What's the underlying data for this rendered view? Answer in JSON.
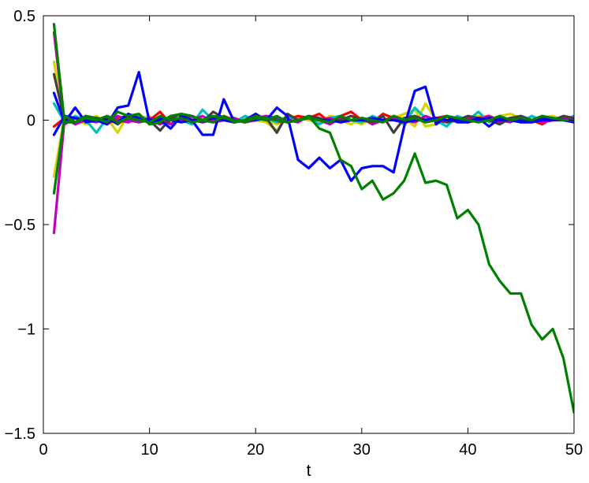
{
  "chart_data": {
    "type": "line",
    "title": "",
    "xlabel": "t",
    "ylabel": "",
    "xlim": [
      0,
      50
    ],
    "ylim": [
      -1.5,
      0.5
    ],
    "x_ticks": [
      0,
      10,
      20,
      30,
      40,
      50
    ],
    "y_ticks": [
      -1.5,
      -1,
      -0.5,
      0,
      0.5
    ],
    "x_tick_labels": [
      "0",
      "10",
      "20",
      "30",
      "40",
      "50"
    ],
    "y_tick_labels": [
      "−1.5",
      "−1",
      "−0.5",
      "0",
      "0.5"
    ],
    "grid": false,
    "legend": "none",
    "series": [
      {
        "color": "#d4d400",
        "x_start": 1,
        "values": [
          0.28,
          -0.02,
          0.01,
          -0.01,
          0.02,
          -0.01,
          0.01,
          0.0,
          0.02,
          0.01,
          -0.01,
          0.02,
          0.0,
          -0.01,
          0.01,
          0.02,
          0.0,
          -0.01,
          0.01,
          0.0,
          -0.01,
          -0.05,
          0.02,
          0.01,
          0.0,
          -0.01,
          0.02,
          0.0,
          -0.02,
          0.01,
          0.0,
          -0.01,
          0.01,
          0.03,
          0.05,
          -0.03,
          -0.02,
          0.0,
          -0.01,
          0.01,
          0.02,
          0.0,
          0.02,
          0.03,
          0.01,
          0.0,
          0.02,
          0.0,
          0.01,
          0.01
        ]
      },
      {
        "color": "#d4d400",
        "x_start": 1,
        "values": [
          -0.27,
          0.02,
          0.01,
          -0.02,
          0.0,
          0.01,
          -0.06,
          0.03,
          -0.01,
          0.02,
          -0.02,
          0.0,
          0.02,
          0.01,
          -0.01,
          0.02,
          0.0,
          0.01,
          -0.01,
          0.02,
          0.0,
          -0.02,
          0.01,
          0.02,
          0.0,
          -0.01,
          0.02,
          0.01,
          0.0,
          -0.02,
          0.01,
          0.0,
          0.02,
          0.01,
          -0.03,
          0.08,
          0.0,
          0.01,
          0.0,
          -0.01,
          0.02,
          0.01,
          0.0,
          0.01,
          0.02,
          0.0,
          0.01,
          0.02,
          0.0,
          0.01
        ]
      },
      {
        "color": "#ff0000",
        "x_start": 1,
        "values": [
          -0.03,
          0.01,
          -0.01,
          0.02,
          0.0,
          -0.02,
          0.01,
          0.02,
          -0.01,
          0.0,
          0.04,
          -0.02,
          0.01,
          0.02,
          0.0,
          -0.01,
          0.02,
          0.0,
          -0.01,
          0.01,
          0.02,
          -0.01,
          0.0,
          0.02,
          0.01,
          0.03,
          -0.01,
          0.02,
          0.04,
          0.0,
          -0.01,
          0.03,
          0.01,
          -0.02,
          0.02,
          0.0,
          0.01,
          0.02,
          0.0,
          -0.01,
          0.01,
          0.02,
          0.0,
          0.01,
          -0.01,
          0.0,
          -0.02,
          0.01,
          0.0,
          0.01
        ]
      },
      {
        "color": "#00bfbf",
        "x_start": 1,
        "values": [
          0.08,
          -0.01,
          0.02,
          0.0,
          -0.06,
          0.01,
          0.02,
          -0.01,
          0.02,
          0.0,
          -0.01,
          0.02,
          0.0,
          -0.02,
          0.05,
          0.0,
          0.01,
          -0.01,
          0.02,
          0.0,
          0.01,
          -0.01,
          0.02,
          0.0,
          0.01,
          -0.02,
          0.01,
          0.02,
          0.0,
          -0.01,
          0.02,
          0.0,
          0.01,
          -0.02,
          0.06,
          0.01,
          0.0,
          -0.03,
          0.02,
          0.0,
          0.04,
          -0.01,
          0.01,
          0.0,
          -0.01,
          0.02,
          0.0,
          0.01,
          0.0,
          0.02
        ]
      },
      {
        "color": "#bf00bf",
        "x_start": 1,
        "values": [
          -0.54,
          0.01,
          -0.02,
          0.0,
          0.01,
          -0.01,
          0.02,
          0.0,
          -0.01,
          0.01,
          0.0,
          -0.02,
          0.01,
          0.0,
          0.02,
          -0.01,
          0.0,
          0.01,
          -0.01,
          0.0,
          0.02,
          0.01,
          0.0,
          -0.01,
          0.02,
          0.0,
          0.01,
          -0.01,
          0.0,
          0.01,
          -0.02,
          0.0,
          0.01,
          0.0,
          -0.01,
          0.02,
          0.0,
          -0.01,
          0.0,
          0.01,
          0.0,
          0.02,
          -0.01,
          0.0,
          0.01,
          0.0,
          -0.01,
          0.0,
          0.01,
          0.0
        ]
      },
      {
        "color": "#bf00bf",
        "x_start": 1,
        "values": [
          0.42,
          -0.02,
          0.01,
          0.0,
          -0.01,
          0.02,
          0.0,
          -0.01,
          0.01,
          0.0,
          -0.02,
          0.01,
          0.0,
          0.02,
          -0.01,
          0.0,
          0.01,
          0.0,
          -0.01,
          0.02,
          0.0,
          0.01,
          -0.01,
          0.0,
          0.01,
          0.0,
          -0.02,
          0.01,
          0.0,
          0.01,
          0.0,
          -0.01,
          0.02,
          0.0,
          0.01,
          -0.01,
          0.0,
          0.02,
          0.0,
          -0.01,
          0.0,
          0.01,
          0.0,
          -0.01,
          0.02,
          0.0,
          0.0,
          0.01,
          0.0,
          0.0
        ]
      },
      {
        "color": "#404040",
        "x_start": 1,
        "values": [
          0.22,
          0.0,
          -0.01,
          0.02,
          0.0,
          0.01,
          -0.02,
          0.02,
          0.01,
          0.0,
          -0.05,
          0.01,
          0.03,
          0.0,
          -0.01,
          0.04,
          0.01,
          -0.01,
          0.0,
          0.02,
          0.01,
          -0.06,
          0.03,
          0.0,
          0.02,
          0.01,
          -0.01,
          0.0,
          0.02,
          0.0,
          -0.01,
          0.02,
          -0.06,
          0.01,
          0.02,
          0.0,
          0.01,
          -0.01,
          0.0,
          0.02,
          0.01,
          0.0,
          -0.02,
          0.01,
          0.02,
          0.0,
          0.01,
          0.0,
          0.02,
          0.01
        ]
      },
      {
        "color": "#0000ff",
        "x_start": 1,
        "values": [
          0.13,
          -0.01,
          0.06,
          -0.01,
          0.0,
          -0.02,
          0.06,
          0.07,
          0.23,
          -0.01,
          0.0,
          -0.04,
          0.02,
          0.0,
          -0.07,
          -0.07,
          0.1,
          -0.01,
          0.0,
          0.03,
          0.0,
          0.06,
          0.02,
          -0.19,
          -0.23,
          -0.18,
          -0.23,
          -0.19,
          -0.29,
          -0.23,
          -0.22,
          -0.22,
          -0.25,
          -0.03,
          0.14,
          0.16,
          -0.02,
          0.02,
          -0.01,
          -0.01,
          0.01,
          -0.03,
          0.01,
          0.0,
          -0.01,
          -0.01,
          0.01,
          0.01,
          0.0,
          -0.01
        ]
      },
      {
        "color": "#0000ff",
        "x_start": 1,
        "values": [
          -0.07,
          0.02,
          0.01,
          0.0,
          0.01,
          0.0,
          -0.01,
          0.03,
          0.01,
          0.0,
          0.01,
          0.0,
          -0.01,
          0.0,
          0.0,
          0.01,
          0.0,
          -0.01,
          0.0,
          0.0,
          0.01,
          0.0,
          -0.01,
          0.0,
          0.01,
          0.0,
          0.0,
          -0.01,
          0.0,
          0.0,
          0.01,
          0.0,
          0.0,
          -0.01,
          0.0,
          0.0,
          0.01,
          0.0,
          0.0,
          0.0,
          0.0,
          0.01,
          0.0,
          0.0,
          0.0,
          -0.01,
          0.0,
          0.0,
          0.0,
          0.0
        ]
      },
      {
        "color": "#008000",
        "x_start": 1,
        "values": [
          -0.35,
          0.02,
          -0.01,
          0.01,
          0.0,
          0.02,
          -0.01,
          0.01,
          0.0,
          -0.01,
          0.02,
          0.0,
          0.01,
          -0.01,
          0.0,
          0.02,
          0.01,
          0.0,
          -0.01,
          0.01,
          0.0,
          0.02,
          -0.01,
          0.0,
          0.01,
          0.0,
          -0.01,
          0.02,
          0.0,
          0.01,
          0.0,
          -0.01,
          0.02,
          0.0,
          0.01,
          -0.01,
          0.0,
          0.02,
          0.01,
          0.0,
          -0.01,
          0.0,
          0.02,
          0.0,
          0.01,
          0.0,
          0.02,
          0.01,
          0.0,
          0.0
        ]
      },
      {
        "color": "#008000",
        "x_start": 1,
        "values": [
          0.46,
          -0.01,
          -0.01,
          0.02,
          0.01,
          -0.01,
          0.04,
          0.02,
          0.03,
          -0.02,
          -0.01,
          0.02,
          0.03,
          0.02,
          0.0,
          -0.01,
          0.02,
          -0.01,
          0.0,
          0.02,
          0.01,
          0.0,
          -0.01,
          0.0,
          0.02,
          -0.04,
          -0.06,
          -0.19,
          -0.22,
          -0.33,
          -0.29,
          -0.38,
          -0.35,
          -0.29,
          -0.16,
          -0.3,
          -0.29,
          -0.31,
          -0.47,
          -0.43,
          -0.5,
          -0.69,
          -0.77,
          -0.83,
          -0.83,
          -0.98,
          -1.05,
          -1.0,
          -1.14,
          -1.4
        ]
      }
    ]
  }
}
